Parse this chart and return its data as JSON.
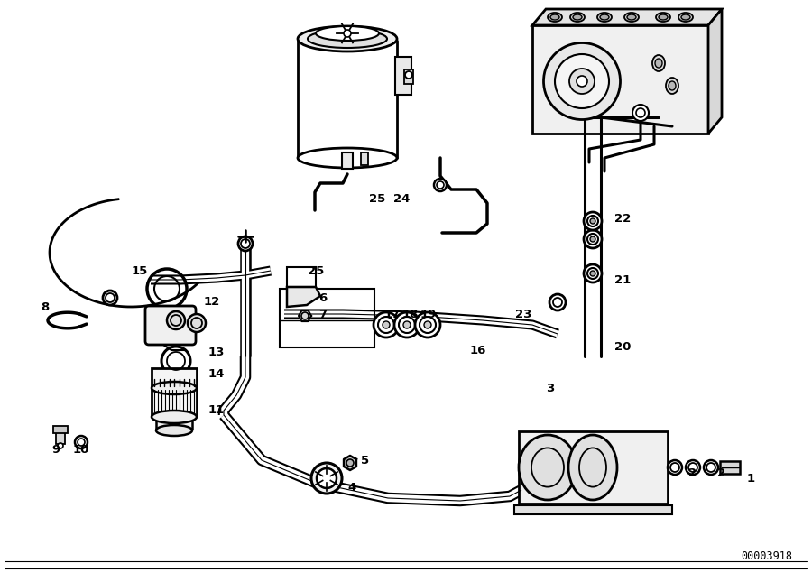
{
  "bg_color": "#ffffff",
  "line_color": "#000000",
  "fig_width": 9.0,
  "fig_height": 6.35,
  "diagram_id": "00003918",
  "part_label_data": [
    [
      1,
      832,
      530
    ],
    [
      2,
      800,
      525
    ],
    [
      2,
      768,
      525
    ],
    [
      3,
      610,
      430
    ],
    [
      4,
      390,
      540
    ],
    [
      5,
      405,
      510
    ],
    [
      6,
      358,
      330
    ],
    [
      7,
      358,
      348
    ],
    [
      8,
      50,
      340
    ],
    [
      9,
      62,
      498
    ],
    [
      10,
      90,
      498
    ],
    [
      11,
      240,
      455
    ],
    [
      12,
      235,
      335
    ],
    [
      13,
      240,
      390
    ],
    [
      14,
      240,
      415
    ],
    [
      15,
      155,
      300
    ],
    [
      16,
      530,
      388
    ],
    [
      17,
      435,
      348
    ],
    [
      18,
      455,
      348
    ],
    [
      19,
      475,
      348
    ],
    [
      20,
      690,
      385
    ],
    [
      21,
      690,
      310
    ],
    [
      22,
      690,
      242
    ],
    [
      23,
      580,
      348
    ],
    [
      24,
      445,
      220
    ],
    [
      25,
      418,
      220
    ],
    [
      25,
      350,
      300
    ]
  ]
}
